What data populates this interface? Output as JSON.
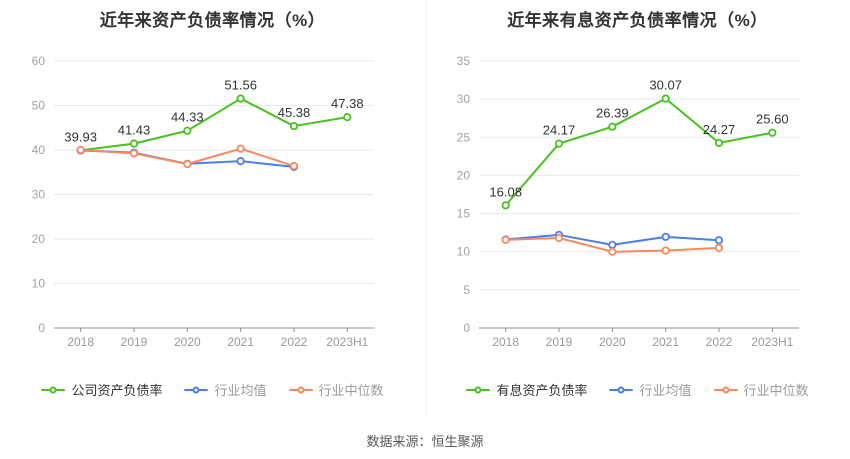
{
  "page": {
    "source_note": "数据来源：恒生聚源"
  },
  "theme": {
    "grid_line": "#e4e9f3",
    "axis_line": "#8f8f8f",
    "ytick_text": "#a3a3a3",
    "xtick_text": "#999999",
    "point_label": "#333333",
    "legend_primary_text": "#333333",
    "legend_muted_text": "#9b9b9b",
    "background": "#ffffff"
  },
  "chart_data": [
    {
      "type": "line",
      "title": "近年来资产负债率情况（%）",
      "categories": [
        "2018",
        "2019",
        "2020",
        "2021",
        "2022",
        "2023H1"
      ],
      "ylim": [
        0,
        60
      ],
      "ytick_step": 10,
      "grid": true,
      "legend_position": "bottom",
      "series": [
        {
          "name": "公司资产负债率",
          "color": "#46c31e",
          "values": [
            39.93,
            41.43,
            44.33,
            51.56,
            45.38,
            47.38
          ],
          "point_labels": [
            "39.93",
            "41.43",
            "44.33",
            "51.56",
            "45.38",
            "47.38"
          ]
        },
        {
          "name": "行业均值",
          "color": "#4a7eee",
          "values": [
            39.9,
            39.4,
            36.9,
            37.5,
            36.2,
            null
          ]
        },
        {
          "name": "行业中位数",
          "color": "#f9885c",
          "values": [
            40.0,
            39.25,
            36.85,
            40.3,
            36.4,
            null
          ]
        }
      ]
    },
    {
      "type": "line",
      "title": "近年来有息资产负债率情况（%）",
      "categories": [
        "2018",
        "2019",
        "2020",
        "2021",
        "2022",
        "2023H1"
      ],
      "ylim": [
        0,
        35
      ],
      "ytick_step": 5,
      "grid": true,
      "legend_position": "bottom",
      "series": [
        {
          "name": "有息资产负债率",
          "color": "#46c31e",
          "values": [
            16.08,
            24.17,
            26.39,
            30.07,
            24.27,
            25.6
          ],
          "point_labels": [
            "16.08",
            "24.17",
            "26.39",
            "30.07",
            "24.27",
            "25.60"
          ]
        },
        {
          "name": "行业均值",
          "color": "#4a7eee",
          "values": [
            11.6,
            12.2,
            10.9,
            11.95,
            11.5,
            null
          ]
        },
        {
          "name": "行业中位数",
          "color": "#f9885c",
          "values": [
            11.55,
            11.8,
            10.0,
            10.15,
            10.5,
            null
          ]
        }
      ]
    }
  ]
}
